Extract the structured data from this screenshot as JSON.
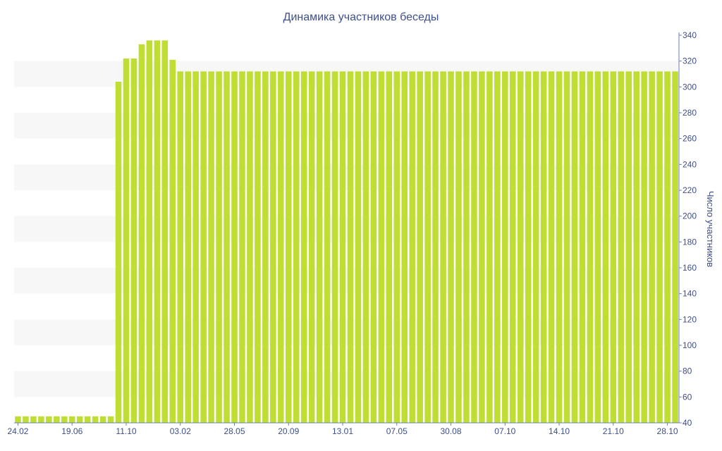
{
  "chart_data": {
    "type": "bar",
    "title": "Динамика участников беседы",
    "xlabel": "",
    "ylabel": "Число участников",
    "ylim": [
      40,
      340
    ],
    "y_ticks": [
      40,
      60,
      80,
      100,
      120,
      140,
      160,
      180,
      200,
      220,
      240,
      260,
      280,
      300,
      320,
      340
    ],
    "y_axis_side": "right",
    "grid": "alternating horizontal bands",
    "bar_color": "#bede34",
    "band_color": "#f7f7f7",
    "text_color": "#3e4f8a",
    "x_tick_labels": [
      {
        "index": 0,
        "label": "24.02"
      },
      {
        "index": 7,
        "label": "19.06"
      },
      {
        "index": 14,
        "label": "11.10"
      },
      {
        "index": 21,
        "label": "03.02"
      },
      {
        "index": 28,
        "label": "28.05"
      },
      {
        "index": 35,
        "label": "20.09"
      },
      {
        "index": 42,
        "label": "13.01"
      },
      {
        "index": 49,
        "label": "07.05"
      },
      {
        "index": 56,
        "label": "30.08"
      },
      {
        "index": 63,
        "label": "07.10"
      },
      {
        "index": 70,
        "label": "14.10"
      },
      {
        "index": 77,
        "label": "21.10"
      },
      {
        "index": 84,
        "label": "28.10"
      }
    ],
    "values": [
      45,
      45,
      45,
      45,
      45,
      45,
      45,
      45,
      45,
      45,
      45,
      45,
      45,
      304,
      322,
      322,
      333,
      336,
      336,
      336,
      321,
      312,
      312,
      312,
      312,
      312,
      312,
      312,
      312,
      312,
      312,
      312,
      312,
      312,
      312,
      312,
      312,
      312,
      312,
      312,
      312,
      312,
      312,
      312,
      312,
      312,
      312,
      312,
      312,
      312,
      312,
      312,
      312,
      312,
      312,
      312,
      312,
      312,
      312,
      312,
      312,
      312,
      312,
      312,
      312,
      312,
      312,
      312,
      312,
      312,
      312,
      312,
      312,
      312,
      312,
      312,
      312,
      312,
      312,
      312,
      312,
      312,
      312,
      312,
      312,
      312
    ]
  }
}
